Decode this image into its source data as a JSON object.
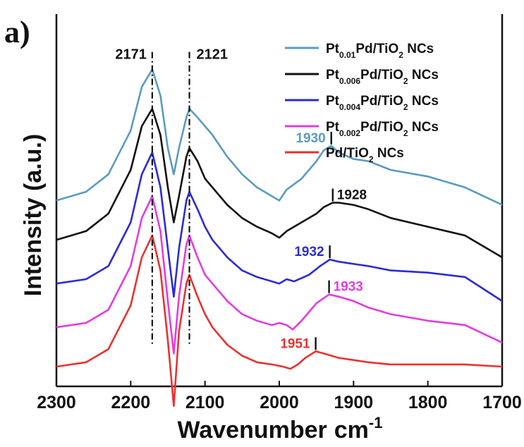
{
  "chart_data": {
    "type": "line",
    "panel_label": "a)",
    "xlabel": "Wavenumber",
    "xlabel_unit": "cm",
    "xlabel_exp": "-1",
    "ylabel": "Intensity (a.u.)",
    "xlim": [
      2300,
      1700
    ],
    "x_ticks": [
      "2300",
      "2200",
      "2100",
      "2000",
      "1900",
      "1800",
      "1700"
    ],
    "x_tick_values": [
      2300,
      2200,
      2100,
      2000,
      1900,
      1800,
      1700
    ],
    "grid": false,
    "legend_position": "top-right",
    "series": [
      {
        "name_parts": [
          [
            "Pt",
            ""
          ],
          [
            "0.01",
            "sub"
          ],
          [
            "Pd/TiO",
            ""
          ],
          [
            "2",
            "sub"
          ],
          [
            " NCs",
            ""
          ]
        ],
        "color": "#5b9bbd",
        "offset": 3.8,
        "x": [
          2300,
          2260,
          2230,
          2200,
          2185,
          2171,
          2160,
          2150,
          2142,
          2135,
          2125,
          2121,
          2110,
          2100,
          2090,
          2070,
          2050,
          2030,
          2010,
          2000,
          1990,
          1970,
          1950,
          1940,
          1930,
          1920,
          1900,
          1880,
          1850,
          1800,
          1750,
          1700
        ],
        "y": [
          0.0,
          0.2,
          0.6,
          1.6,
          2.6,
          3.0,
          2.4,
          1.2,
          0.6,
          1.2,
          1.9,
          2.1,
          1.9,
          1.7,
          1.5,
          1.0,
          0.6,
          0.3,
          0.1,
          0.0,
          0.25,
          0.5,
          0.9,
          1.15,
          1.25,
          1.1,
          0.95,
          0.9,
          0.7,
          0.55,
          0.3,
          -0.1
        ]
      },
      {
        "name_parts": [
          [
            "Pt",
            ""
          ],
          [
            "0.006",
            "sub"
          ],
          [
            "Pd/TiO",
            ""
          ],
          [
            "2",
            "sub"
          ],
          [
            " NCs",
            ""
          ]
        ],
        "color": "#111111",
        "offset": 2.9,
        "x": [
          2300,
          2260,
          2230,
          2200,
          2185,
          2171,
          2160,
          2150,
          2142,
          2135,
          2125,
          2121,
          2110,
          2100,
          2090,
          2070,
          2050,
          2030,
          2010,
          2000,
          1990,
          1970,
          1950,
          1940,
          1928,
          1920,
          1900,
          1880,
          1850,
          1800,
          1750,
          1700
        ],
        "y": [
          0.0,
          0.2,
          0.6,
          1.6,
          2.6,
          3.0,
          2.4,
          1.2,
          0.4,
          1.0,
          1.9,
          2.1,
          1.8,
          1.4,
          1.2,
          0.8,
          0.5,
          0.3,
          0.15,
          0.05,
          0.2,
          0.4,
          0.6,
          0.75,
          0.85,
          0.85,
          0.8,
          0.7,
          0.5,
          0.3,
          0.1,
          -0.4
        ]
      },
      {
        "name_parts": [
          [
            "Pt",
            ""
          ],
          [
            "0.004",
            "sub"
          ],
          [
            "Pd/TiO",
            ""
          ],
          [
            "2",
            "sub"
          ],
          [
            " NCs",
            ""
          ]
        ],
        "color": "#2b2bd6",
        "offset": 1.9,
        "x": [
          2300,
          2260,
          2230,
          2200,
          2185,
          2171,
          2160,
          2150,
          2142,
          2135,
          2125,
          2121,
          2110,
          2100,
          2090,
          2070,
          2050,
          2030,
          2010,
          2000,
          1990,
          1980,
          1960,
          1945,
          1932,
          1920,
          1900,
          1880,
          1850,
          1800,
          1750,
          1700
        ],
        "y": [
          0.0,
          0.1,
          0.4,
          1.4,
          2.5,
          3.0,
          2.2,
          0.8,
          -0.3,
          0.8,
          1.9,
          2.1,
          1.7,
          1.3,
          1.0,
          0.6,
          0.3,
          0.15,
          0.05,
          0.0,
          0.1,
          0.05,
          0.2,
          0.4,
          0.55,
          0.5,
          0.45,
          0.4,
          0.3,
          0.25,
          0.15,
          -0.4
        ]
      },
      {
        "name_parts": [
          [
            "Pt",
            ""
          ],
          [
            "0.002",
            "sub"
          ],
          [
            "Pd/TiO",
            ""
          ],
          [
            "2",
            "sub"
          ],
          [
            " NCs",
            ""
          ]
        ],
        "color": "#e23ce2",
        "offset": 0.9,
        "x": [
          2300,
          2260,
          2230,
          2200,
          2185,
          2171,
          2160,
          2150,
          2142,
          2135,
          2125,
          2121,
          2110,
          2100,
          2090,
          2070,
          2050,
          2030,
          2010,
          2000,
          1990,
          1982,
          1970,
          1950,
          1933,
          1920,
          1900,
          1880,
          1850,
          1800,
          1750,
          1700
        ],
        "y": [
          0.0,
          0.1,
          0.4,
          1.4,
          2.5,
          3.0,
          2.2,
          0.6,
          -0.6,
          0.7,
          1.9,
          2.1,
          1.6,
          1.2,
          1.0,
          0.6,
          0.3,
          0.15,
          0.05,
          0.1,
          0.05,
          -0.05,
          0.15,
          0.55,
          0.75,
          0.7,
          0.6,
          0.45,
          0.3,
          0.15,
          0.05,
          -0.35
        ]
      },
      {
        "name_parts": [
          [
            "Pd/TiO",
            ""
          ],
          [
            "2",
            "sub"
          ],
          [
            " NCs",
            ""
          ]
        ],
        "color": "#e8322f",
        "offset": 0.0,
        "x": [
          2300,
          2260,
          2230,
          2200,
          2185,
          2171,
          2160,
          2150,
          2142,
          2135,
          2125,
          2121,
          2110,
          2100,
          2090,
          2070,
          2050,
          2030,
          2010,
          1995,
          1985,
          1975,
          1965,
          1951,
          1940,
          1920,
          1900,
          1880,
          1850,
          1800,
          1750,
          1700
        ],
        "y": [
          0.0,
          0.1,
          0.4,
          1.4,
          2.5,
          3.0,
          2.2,
          0.6,
          -0.9,
          0.8,
          1.9,
          2.1,
          1.6,
          1.2,
          0.9,
          0.5,
          0.25,
          0.1,
          0.05,
          0.0,
          -0.05,
          0.05,
          0.2,
          0.35,
          0.3,
          0.2,
          0.15,
          0.1,
          0.05,
          0.05,
          0.05,
          0.0
        ]
      }
    ],
    "annotations": [
      {
        "text": "2171",
        "x": 2171,
        "color": "#111111",
        "type": "vline-dashdot"
      },
      {
        "text": "2121",
        "x": 2121,
        "color": "#111111",
        "type": "vline-dashdot"
      },
      {
        "text": "1930",
        "x": 1930,
        "series": 0,
        "color": "#5b9bbd",
        "type": "tick"
      },
      {
        "text": "1928",
        "x": 1928,
        "series": 1,
        "color": "#111111",
        "type": "tick"
      },
      {
        "text": "1932",
        "x": 1932,
        "series": 2,
        "color": "#2b2bd6",
        "type": "tick"
      },
      {
        "text": "1933",
        "x": 1933,
        "series": 3,
        "color": "#e23ce2",
        "type": "tick"
      },
      {
        "text": "1951",
        "x": 1951,
        "series": 4,
        "color": "#e8322f",
        "type": "tick"
      }
    ]
  }
}
